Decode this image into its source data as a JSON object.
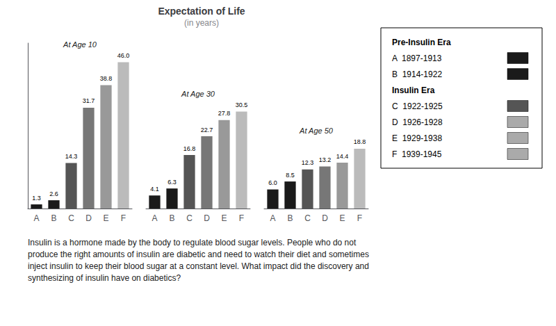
{
  "chart_data": {
    "type": "bar",
    "title": "Expectation of Life",
    "subtitle": "(in years)",
    "categories": [
      "A",
      "B",
      "C",
      "D",
      "E",
      "F",
      "A",
      "B",
      "C",
      "D",
      "E",
      "F",
      "A",
      "B",
      "C",
      "D",
      "E",
      "F"
    ],
    "values": [
      1.3,
      2.6,
      14.3,
      31.7,
      38.8,
      46.0,
      4.1,
      6.3,
      16.8,
      22.7,
      27.8,
      30.5,
      6.0,
      8.5,
      12.3,
      13.2,
      14.4,
      18.8
    ],
    "value_labels": [
      "1.3",
      "2.6",
      "14.3",
      "31.7",
      "38.8",
      "46.0",
      "4.1",
      "6.3",
      "16.8",
      "22.7",
      "27.8",
      "30.5",
      "6.0",
      "8.5",
      "12.3",
      "13.2",
      "14.4",
      "18.8"
    ],
    "colors": [
      "#1a1a1a",
      "#1a1a1a",
      "#555555",
      "#777777",
      "#999999",
      "#bbbbbb",
      "#1a1a1a",
      "#1a1a1a",
      "#555555",
      "#777777",
      "#999999",
      "#bbbbbb",
      "#1a1a1a",
      "#1a1a1a",
      "#555555",
      "#777777",
      "#999999",
      "#bbbbbb"
    ],
    "ylim": [
      0,
      52
    ],
    "yticks": [],
    "tick_labels": "x",
    "grid": false,
    "data_labels": true,
    "annotations": [
      "At Age 10",
      "At Age 30",
      "At Age 50"
    ],
    "legend": "upper right",
    "legend_items": [
      {
        "heading": "Pre-Insulin Era",
        "items": [
          {
            "label": "A  1897-1913",
            "color": "#1a1a1a"
          },
          {
            "label": "B  1914-1922",
            "color": "#1a1a1a"
          }
        ]
      },
      {
        "heading": "Insulin Era",
        "items": [
          {
            "label": "C  1922-1925",
            "color": "#555555"
          },
          {
            "label": "D  1926-1928",
            "color": "#aaaaaa"
          },
          {
            "label": "E  1929-1938",
            "color": "#aaaaaa"
          },
          {
            "label": "F  1939-1945",
            "color": "#aaaaaa"
          }
        ]
      }
    ],
    "caption": "Insulin is a hormone made by the body to regulate blood sugar levels. People who do not\nproduce the right amounts of insulin are diabetic and need to watch their diet and sometimes\ninject insulin to keep their blood sugar at a constant level. What impact did the discovery and\nsynthesizing of insulin have on diabetics?"
  }
}
